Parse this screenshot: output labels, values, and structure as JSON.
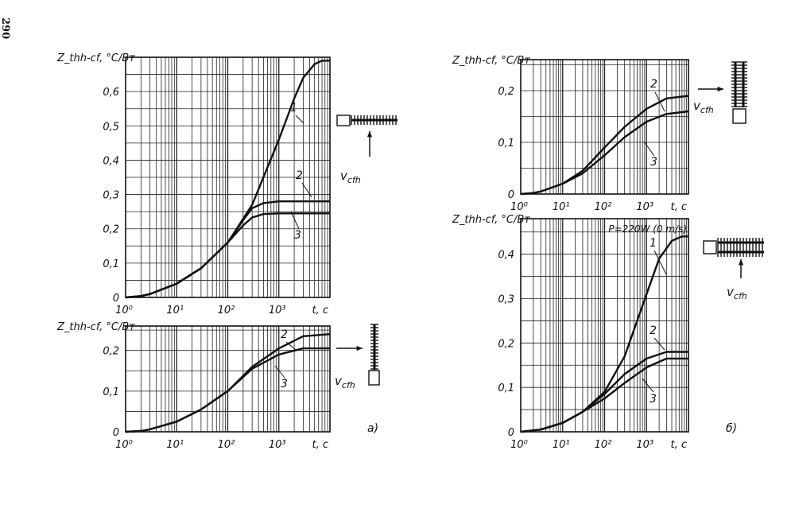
{
  "page_number": "290",
  "panel_labels": {
    "a": "а)",
    "b": "б)"
  },
  "airflow_label": "v",
  "airflow_sub": "cfh",
  "chart_data": [
    {
      "id": "a-top",
      "type": "line",
      "ylabel": "Z_thh-cf, °C/Вт",
      "xlabel": "t, c",
      "x_scale": "log",
      "xlim": [
        1,
        10000
      ],
      "ylim": [
        0,
        0.7
      ],
      "x_ticks": [
        "10⁰",
        "10¹",
        "10²",
        "10³"
      ],
      "y_ticks": [
        "0",
        "0,1",
        "0,2",
        "0,3",
        "0,4",
        "0,5",
        "0,6"
      ],
      "grid": true,
      "series": [
        {
          "name": "1",
          "x": [
            1,
            2,
            3,
            10,
            30,
            100,
            300,
            1000,
            2000,
            3000,
            5000,
            7000,
            10000
          ],
          "y": [
            0,
            0.004,
            0.01,
            0.04,
            0.085,
            0.16,
            0.27,
            0.46,
            0.58,
            0.64,
            0.68,
            0.69,
            0.69
          ]
        },
        {
          "name": "2",
          "x": [
            1,
            2,
            3,
            10,
            30,
            100,
            200,
            300,
            500,
            1000,
            2000,
            10000
          ],
          "y": [
            0,
            0.004,
            0.01,
            0.04,
            0.085,
            0.16,
            0.225,
            0.26,
            0.275,
            0.28,
            0.28,
            0.28
          ]
        },
        {
          "name": "3",
          "x": [
            1,
            2,
            3,
            10,
            30,
            100,
            200,
            300,
            500,
            1000,
            2000,
            10000
          ],
          "y": [
            0,
            0.004,
            0.01,
            0.04,
            0.085,
            0.16,
            0.21,
            0.233,
            0.243,
            0.245,
            0.245,
            0.245
          ]
        }
      ]
    },
    {
      "id": "a-bottom",
      "type": "line",
      "ylabel": "Z_thh-cf, °C/Вт",
      "xlabel": "t, c",
      "x_scale": "log",
      "xlim": [
        1,
        10000
      ],
      "ylim": [
        0,
        0.26
      ],
      "x_ticks": [
        "10⁰",
        "10¹",
        "10²",
        "10³"
      ],
      "y_ticks": [
        "0",
        "0,1",
        "0,2"
      ],
      "grid": true,
      "series": [
        {
          "name": "2",
          "x": [
            1,
            2,
            3,
            10,
            30,
            100,
            300,
            1000,
            3000,
            10000
          ],
          "y": [
            0,
            0.002,
            0.006,
            0.025,
            0.055,
            0.1,
            0.16,
            0.205,
            0.235,
            0.24
          ]
        },
        {
          "name": "3",
          "x": [
            1,
            2,
            3,
            10,
            30,
            100,
            300,
            1000,
            3000,
            10000
          ],
          "y": [
            0,
            0.002,
            0.006,
            0.025,
            0.055,
            0.1,
            0.155,
            0.19,
            0.205,
            0.205
          ]
        }
      ]
    },
    {
      "id": "b-top",
      "type": "line",
      "ylabel": "Z_thh-cf, °C/Вт",
      "xlabel": "t, c",
      "x_scale": "log",
      "xlim": [
        1,
        10000
      ],
      "ylim": [
        0,
        0.26
      ],
      "x_ticks": [
        "10⁰",
        "10¹",
        "10²",
        "10³"
      ],
      "y_ticks": [
        "0",
        "0,1",
        "0,2"
      ],
      "grid": true,
      "series": [
        {
          "name": "2",
          "x": [
            1,
            2,
            3,
            10,
            30,
            100,
            300,
            1000,
            3000,
            10000
          ],
          "y": [
            0,
            0.002,
            0.005,
            0.02,
            0.045,
            0.09,
            0.13,
            0.165,
            0.185,
            0.19
          ]
        },
        {
          "name": "3",
          "x": [
            1,
            2,
            3,
            10,
            30,
            100,
            300,
            1000,
            3000,
            10000
          ],
          "y": [
            0,
            0.002,
            0.005,
            0.02,
            0.04,
            0.075,
            0.11,
            0.14,
            0.155,
            0.16
          ]
        }
      ]
    },
    {
      "id": "b-bottom",
      "type": "line",
      "ylabel": "Z_thh-cf, °C/Вт",
      "xlabel": "t, c",
      "x_scale": "log",
      "xlim": [
        1,
        10000
      ],
      "ylim": [
        0,
        0.48
      ],
      "x_ticks": [
        "10⁰",
        "10¹",
        "10²",
        "10³"
      ],
      "y_ticks": [
        "0",
        "0,1",
        "0,2",
        "0,3",
        "0,4"
      ],
      "grid": true,
      "annotation": "P=220W (0 m/s)",
      "series": [
        {
          "name": "1",
          "x": [
            1,
            3,
            10,
            30,
            100,
            300,
            1000,
            2000,
            4000,
            7000,
            10000
          ],
          "y": [
            0,
            0.005,
            0.02,
            0.045,
            0.09,
            0.17,
            0.31,
            0.39,
            0.43,
            0.44,
            0.44
          ]
        },
        {
          "name": "2",
          "x": [
            1,
            3,
            10,
            30,
            100,
            300,
            1000,
            3000,
            10000
          ],
          "y": [
            0,
            0.005,
            0.02,
            0.045,
            0.085,
            0.13,
            0.165,
            0.18,
            0.18
          ]
        },
        {
          "name": "3",
          "x": [
            1,
            3,
            10,
            30,
            100,
            300,
            1000,
            3000,
            10000
          ],
          "y": [
            0,
            0.005,
            0.02,
            0.045,
            0.075,
            0.11,
            0.145,
            0.165,
            0.165
          ]
        }
      ]
    }
  ]
}
